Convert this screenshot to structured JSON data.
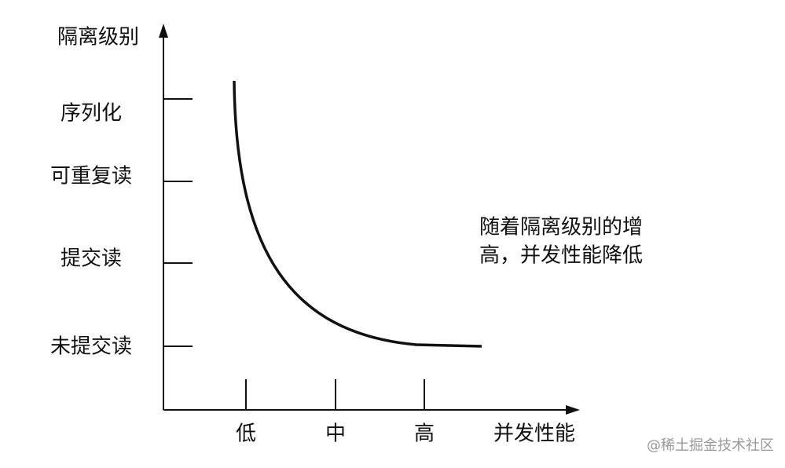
{
  "y_axis": {
    "label": "隔离级别",
    "categories": [
      "序列化",
      "可重复读",
      "提交读",
      "未提交读"
    ]
  },
  "x_axis": {
    "label": "并发性能",
    "categories": [
      "低",
      "中",
      "高"
    ]
  },
  "annotation": [
    "随着隔离级别的增",
    "高，并发性能降低"
  ],
  "watermark": "@稀土掘金技术社区"
}
